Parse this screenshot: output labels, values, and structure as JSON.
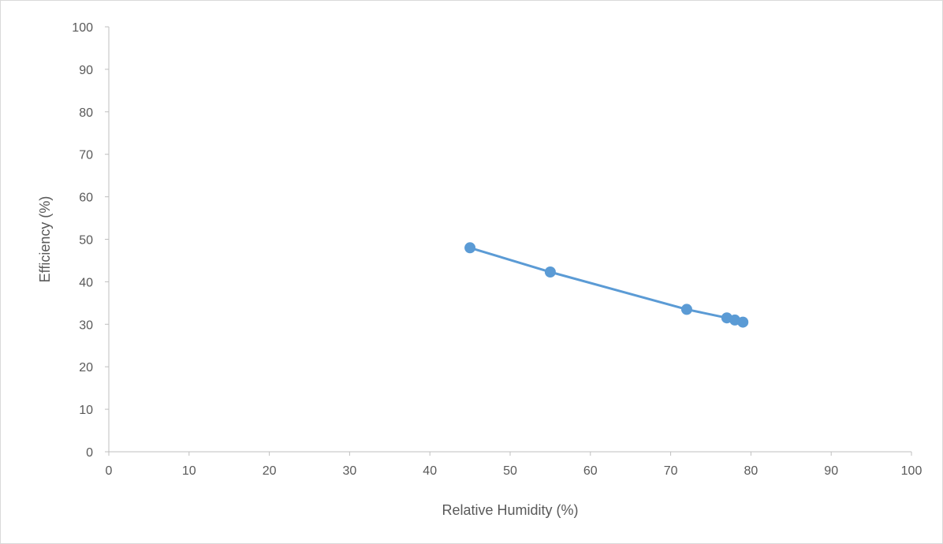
{
  "chart_data": {
    "type": "scatter",
    "title": "",
    "xlabel": "Relative Humidity (%)",
    "ylabel": "Efficiency (%)",
    "xlim": [
      0,
      100
    ],
    "ylim": [
      0,
      100
    ],
    "x_ticks": [
      "0",
      "10",
      "20",
      "30",
      "40",
      "50",
      "60",
      "70",
      "80",
      "90",
      "100"
    ],
    "y_ticks": [
      "0",
      "10",
      "20",
      "30",
      "40",
      "50",
      "60",
      "70",
      "80",
      "90",
      "100"
    ],
    "grid": false,
    "legend": "none",
    "series": [
      {
        "color": "#5b9bd5",
        "connected": true,
        "points": [
          {
            "x": 45,
            "y": 48
          },
          {
            "x": 55,
            "y": 42.3
          },
          {
            "x": 72,
            "y": 33.5
          },
          {
            "x": 77,
            "y": 31.5
          },
          {
            "x": 78,
            "y": 31
          },
          {
            "x": 79,
            "y": 30.5
          }
        ]
      }
    ]
  }
}
